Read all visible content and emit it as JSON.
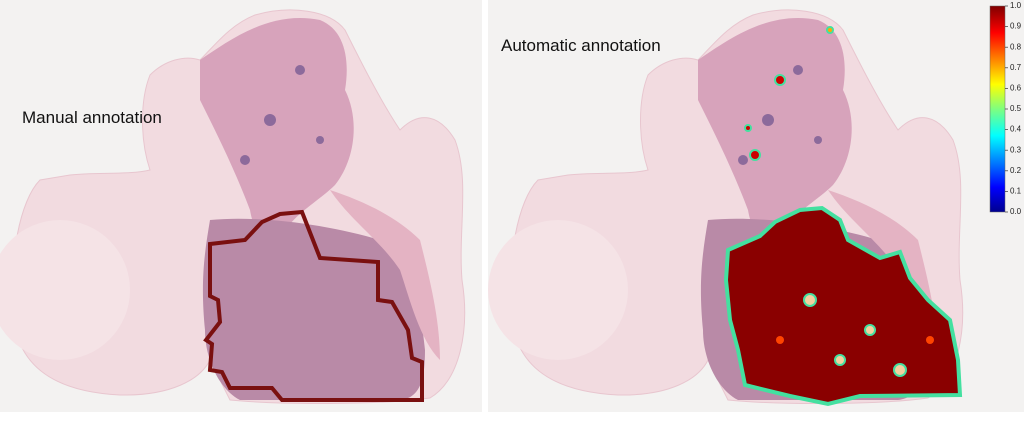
{
  "panels": [
    {
      "label": "Manual annotation"
    },
    {
      "label": "Automatic annotation"
    }
  ],
  "colorbar": {
    "ticks": [
      {
        "value": 0,
        "label": "0.0"
      },
      0.1,
      0.2,
      0.3,
      0.4,
      0.5,
      0.6,
      0.7,
      0.8,
      0.9,
      {
        "value": 1,
        "label": "1.0"
      }
    ]
  }
}
